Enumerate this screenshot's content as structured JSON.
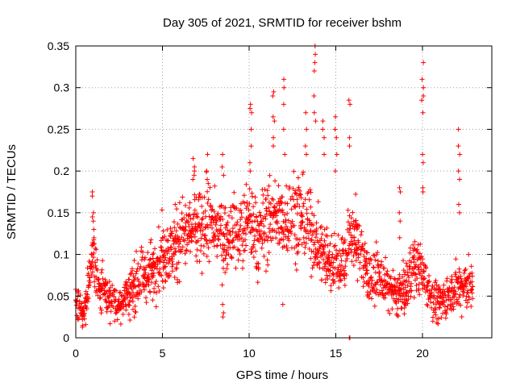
{
  "chart_data": {
    "type": "scatter",
    "title": "Day 305 of 2021, SRMTID for receiver bshm",
    "xlabel": "GPS time / hours",
    "ylabel": "SRMTID / TECUs",
    "xlim": [
      0,
      24
    ],
    "ylim": [
      0,
      0.35
    ],
    "x_ticks": [
      0,
      5,
      10,
      15,
      20
    ],
    "x_tick_labels": [
      "0",
      "5",
      "10",
      "15",
      "20"
    ],
    "y_ticks": [
      0,
      0.05,
      0.1,
      0.15,
      0.2,
      0.25,
      0.3,
      0.35
    ],
    "y_tick_labels": [
      "0",
      "0.05",
      "0.1",
      "0.15",
      "0.2",
      "0.25",
      "0.3",
      "0.35"
    ],
    "grid": true,
    "marker": "+",
    "color": "#ff0000",
    "series": [
      {
        "name": "SRMTID",
        "trend": [
          [
            0.0,
            0.04
          ],
          [
            0.5,
            0.03
          ],
          [
            1.0,
            0.1
          ],
          [
            1.3,
            0.06
          ],
          [
            2.0,
            0.045
          ],
          [
            2.5,
            0.04
          ],
          [
            3.0,
            0.055
          ],
          [
            3.5,
            0.065
          ],
          [
            4.0,
            0.075
          ],
          [
            4.5,
            0.085
          ],
          [
            5.0,
            0.1
          ],
          [
            5.5,
            0.105
          ],
          [
            6.0,
            0.12
          ],
          [
            6.5,
            0.125
          ],
          [
            7.0,
            0.13
          ],
          [
            7.5,
            0.14
          ],
          [
            8.0,
            0.13
          ],
          [
            8.5,
            0.12
          ],
          [
            9.0,
            0.125
          ],
          [
            9.5,
            0.12
          ],
          [
            10.0,
            0.14
          ],
          [
            10.5,
            0.12
          ],
          [
            11.0,
            0.14
          ],
          [
            11.5,
            0.14
          ],
          [
            12.0,
            0.14
          ],
          [
            12.5,
            0.15
          ],
          [
            13.0,
            0.145
          ],
          [
            13.5,
            0.13
          ],
          [
            14.0,
            0.11
          ],
          [
            14.5,
            0.095
          ],
          [
            15.0,
            0.09
          ],
          [
            15.5,
            0.095
          ],
          [
            16.0,
            0.13
          ],
          [
            16.5,
            0.1
          ],
          [
            17.0,
            0.07
          ],
          [
            17.5,
            0.075
          ],
          [
            18.0,
            0.06
          ],
          [
            18.5,
            0.05
          ],
          [
            19.0,
            0.06
          ],
          [
            19.5,
            0.09
          ],
          [
            20.0,
            0.08
          ],
          [
            20.5,
            0.05
          ],
          [
            21.0,
            0.04
          ],
          [
            21.5,
            0.055
          ],
          [
            22.0,
            0.06
          ],
          [
            22.5,
            0.065
          ],
          [
            22.9,
            0.06
          ]
        ],
        "spikes": [
          {
            "x": 1.0,
            "values": [
              0.175,
              0.17,
              0.15,
              0.145,
              0.14,
              0.13,
              0.12
            ]
          },
          {
            "x": 5.0,
            "values": [
              0.06
            ]
          },
          {
            "x": 6.8,
            "values": [
              0.215,
              0.205,
              0.2,
              0.195,
              0.19
            ]
          },
          {
            "x": 7.6,
            "values": [
              0.22,
              0.2,
              0.19,
              0.185
            ]
          },
          {
            "x": 8.5,
            "values": [
              0.22,
              0.205,
              0.195,
              0.04,
              0.03,
              0.025
            ]
          },
          {
            "x": 10.1,
            "values": [
              0.28,
              0.275,
              0.27,
              0.25,
              0.23,
              0.21,
              0.2
            ]
          },
          {
            "x": 11.4,
            "values": [
              0.295,
              0.29,
              0.265,
              0.26,
              0.24,
              0.23
            ]
          },
          {
            "x": 12.0,
            "values": [
              0.31,
              0.3,
              0.28,
              0.25,
              0.22,
              0.04
            ]
          },
          {
            "x": 13.3,
            "values": [
              0.27,
              0.25,
              0.23,
              0.22
            ]
          },
          {
            "x": 13.8,
            "values": [
              0.35,
              0.34,
              0.33,
              0.32,
              0.29,
              0.27,
              0.26
            ]
          },
          {
            "x": 14.3,
            "values": [
              0.26,
              0.25,
              0.24,
              0.22
            ]
          },
          {
            "x": 15.0,
            "values": [
              0.265,
              0.25,
              0.24,
              0.22,
              0.2
            ]
          },
          {
            "x": 15.8,
            "values": [
              0.285,
              0.28,
              0.24,
              0.23,
              0.0,
              0.0
            ]
          },
          {
            "x": 18.7,
            "values": [
              0.18,
              0.175,
              0.15,
              0.14,
              0.12
            ]
          },
          {
            "x": 20.0,
            "values": [
              0.33,
              0.31,
              0.3,
              0.29,
              0.285,
              0.27,
              0.22,
              0.21,
              0.18,
              0.175
            ]
          },
          {
            "x": 22.1,
            "values": [
              0.25,
              0.23,
              0.22,
              0.2,
              0.19,
              0.16,
              0.15
            ]
          }
        ]
      }
    ]
  }
}
